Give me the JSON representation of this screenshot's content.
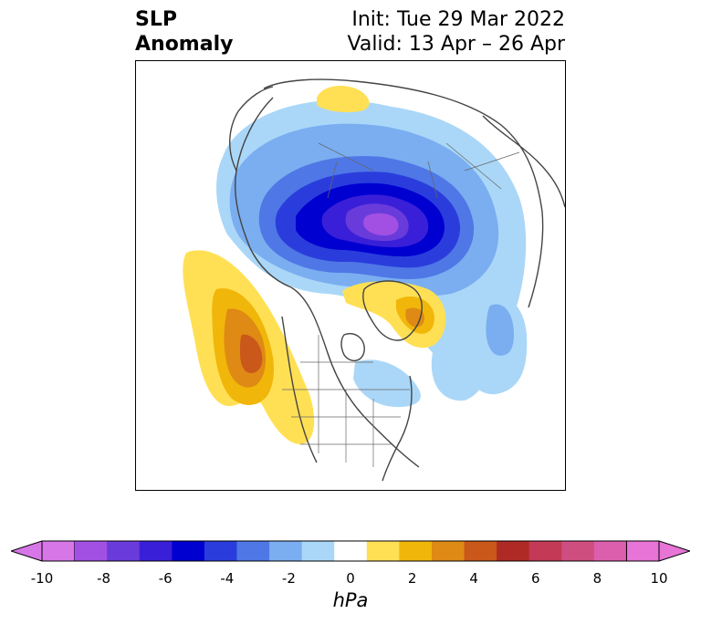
{
  "title": {
    "left_line1": "SLP",
    "left_line2": "Anomaly",
    "right_line1": "Init: Tue 29 Mar 2022",
    "right_line2": "Valid: 13 Apr – 26 Apr"
  },
  "map": {
    "projection": "north-polar-stereographic",
    "field": "sea level pressure anomaly",
    "features": [
      {
        "name": "arctic-low",
        "sign": "negative",
        "peak": -9
      },
      {
        "name": "ne-pacific-high",
        "sign": "positive",
        "peak": 4
      },
      {
        "name": "greenland-high",
        "sign": "positive",
        "peak": 2.5
      },
      {
        "name": "north-atlantic-low",
        "sign": "negative",
        "peak": -2.5
      },
      {
        "name": "siberia-high",
        "sign": "positive",
        "peak": 1.2
      }
    ]
  },
  "colorbar": {
    "unit": "hPa",
    "ticks": [
      "-10",
      "-8",
      "-6",
      "-4",
      "-2",
      "0",
      "2",
      "4",
      "6",
      "8",
      "10"
    ],
    "levels": [
      -10,
      -9,
      -8,
      -7,
      -6,
      -5,
      -4,
      -3,
      -2,
      -1,
      1,
      2,
      3,
      4,
      5,
      6,
      7,
      8,
      9,
      10
    ],
    "colors": [
      "#d776e7",
      "#a250e3",
      "#6a3bdb",
      "#3a1fd9",
      "#0000d0",
      "#2a3ddc",
      "#4f77e6",
      "#7aaef0",
      "#aad7f8",
      "#ffffff",
      "#ffe055",
      "#f1b60a",
      "#de8a14",
      "#c9581a",
      "#b02a25",
      "#c23a55",
      "#ce4e80",
      "#dc5fae",
      "#e774d6"
    ],
    "extend": "both"
  }
}
